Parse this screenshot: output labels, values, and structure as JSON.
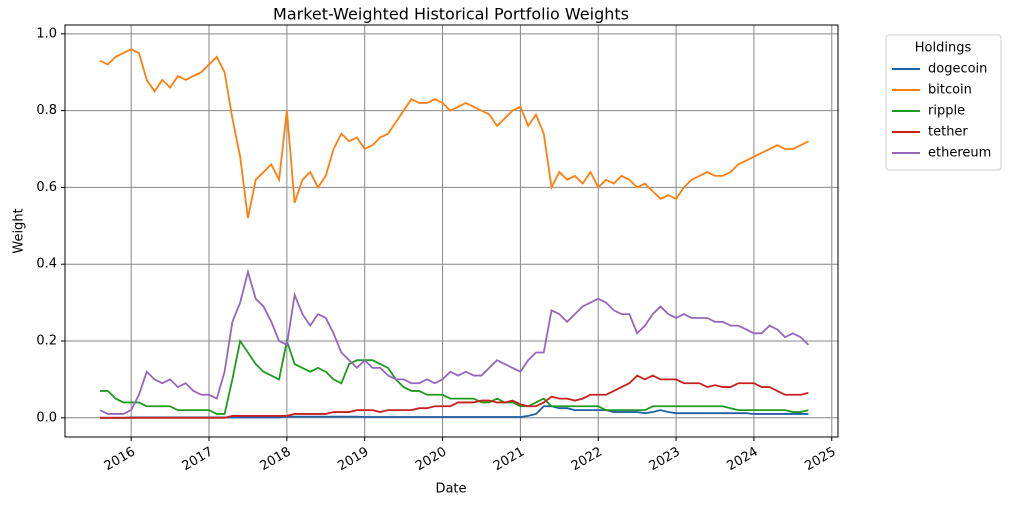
{
  "chart_data": {
    "type": "line",
    "title": "Market-Weighted Historical Portfolio Weights",
    "xlabel": "Date",
    "ylabel": "Weight",
    "legend_title": "Holdings",
    "legend_position": "outside-upper-right",
    "grid": true,
    "xlim": [
      2015.15,
      2025.08
    ],
    "xticks": [
      2016,
      2017,
      2018,
      2019,
      2020,
      2021,
      2022,
      2023,
      2024,
      2025
    ],
    "ylim": [
      -0.05,
      1.023
    ],
    "yticks": [
      {
        "value": 0,
        "label": "0.0"
      },
      0.2,
      0.4,
      0.6,
      0.8,
      {
        "value": 1,
        "label": "1.0"
      }
    ],
    "x": [
      2015.6,
      2015.7,
      2015.8,
      2015.9,
      2016.0,
      2016.1,
      2016.2,
      2016.3,
      2016.4,
      2016.5,
      2016.6,
      2016.7,
      2016.8,
      2016.9,
      2017.0,
      2017.1,
      2017.2,
      2017.3,
      2017.4,
      2017.5,
      2017.6,
      2017.7,
      2017.8,
      2017.9,
      2018.0,
      2018.1,
      2018.2,
      2018.3,
      2018.4,
      2018.5,
      2018.6,
      2018.7,
      2018.8,
      2018.9,
      2019.0,
      2019.1,
      2019.2,
      2019.3,
      2019.4,
      2019.5,
      2019.6,
      2019.7,
      2019.8,
      2019.9,
      2020.0,
      2020.1,
      2020.2,
      2020.3,
      2020.4,
      2020.5,
      2020.6,
      2020.7,
      2020.8,
      2020.9,
      2021.0,
      2021.1,
      2021.2,
      2021.3,
      2021.4,
      2021.5,
      2021.6,
      2021.7,
      2021.8,
      2021.9,
      2022.0,
      2022.1,
      2022.2,
      2022.3,
      2022.4,
      2022.5,
      2022.6,
      2022.7,
      2022.8,
      2022.9,
      2023.0,
      2023.1,
      2023.2,
      2023.3,
      2023.4,
      2023.5,
      2023.6,
      2023.7,
      2023.8,
      2023.9,
      2024.0,
      2024.1,
      2024.2,
      2024.3,
      2024.4,
      2024.5,
      2024.6,
      2024.7
    ],
    "series": [
      {
        "name": "dogecoin",
        "color": "#1f5fa6",
        "values": [
          0,
          0,
          0,
          0,
          0.001,
          0.001,
          0.001,
          0.001,
          0.001,
          0.001,
          0.001,
          0.001,
          0.001,
          0.001,
          0.001,
          0.001,
          0.001,
          0.001,
          0.001,
          0.001,
          0.001,
          0.001,
          0.001,
          0.001,
          0.003,
          0.003,
          0.003,
          0.003,
          0.003,
          0.003,
          0.003,
          0.003,
          0.003,
          0.003,
          0.002,
          0.002,
          0.002,
          0.002,
          0.002,
          0.002,
          0.002,
          0.002,
          0.002,
          0.002,
          0.002,
          0.002,
          0.002,
          0.002,
          0.002,
          0.002,
          0.002,
          0.002,
          0.002,
          0.002,
          0.002,
          0.005,
          0.01,
          0.03,
          0.03,
          0.025,
          0.025,
          0.02,
          0.02,
          0.02,
          0.02,
          0.02,
          0.015,
          0.015,
          0.015,
          0.015,
          0.012,
          0.015,
          0.02,
          0.015,
          0.012,
          0.012,
          0.012,
          0.012,
          0.012,
          0.012,
          0.012,
          0.012,
          0.012,
          0.012,
          0.01,
          0.01,
          0.01,
          0.01,
          0.01,
          0.01,
          0.01,
          0.01
        ]
      },
      {
        "name": "bitcoin",
        "color": "#ff7f0e",
        "values": [
          0.93,
          0.92,
          0.94,
          0.95,
          0.96,
          0.95,
          0.88,
          0.85,
          0.88,
          0.86,
          0.89,
          0.88,
          0.89,
          0.9,
          0.92,
          0.94,
          0.9,
          0.78,
          0.68,
          0.52,
          0.62,
          0.64,
          0.66,
          0.62,
          0.8,
          0.56,
          0.62,
          0.64,
          0.6,
          0.63,
          0.7,
          0.74,
          0.72,
          0.73,
          0.7,
          0.71,
          0.73,
          0.74,
          0.77,
          0.8,
          0.83,
          0.82,
          0.82,
          0.83,
          0.82,
          0.8,
          0.81,
          0.82,
          0.81,
          0.8,
          0.79,
          0.76,
          0.78,
          0.8,
          0.81,
          0.76,
          0.79,
          0.74,
          0.6,
          0.64,
          0.62,
          0.63,
          0.61,
          0.64,
          0.6,
          0.62,
          0.61,
          0.63,
          0.62,
          0.6,
          0.61,
          0.59,
          0.57,
          0.58,
          0.57,
          0.6,
          0.62,
          0.63,
          0.64,
          0.63,
          0.63,
          0.64,
          0.66,
          0.67,
          0.68,
          0.69,
          0.7,
          0.71,
          0.7,
          0.7,
          0.71,
          0.72
        ]
      },
      {
        "name": "ripple",
        "color": "#1f9a1f",
        "values": [
          0.07,
          0.07,
          0.05,
          0.04,
          0.04,
          0.04,
          0.03,
          0.03,
          0.03,
          0.03,
          0.02,
          0.02,
          0.02,
          0.02,
          0.02,
          0.01,
          0.01,
          0.1,
          0.2,
          0.17,
          0.14,
          0.12,
          0.11,
          0.1,
          0.2,
          0.14,
          0.13,
          0.12,
          0.13,
          0.12,
          0.1,
          0.09,
          0.14,
          0.15,
          0.15,
          0.15,
          0.14,
          0.13,
          0.1,
          0.08,
          0.07,
          0.07,
          0.06,
          0.06,
          0.06,
          0.05,
          0.05,
          0.05,
          0.05,
          0.04,
          0.04,
          0.05,
          0.04,
          0.04,
          0.03,
          0.03,
          0.04,
          0.05,
          0.03,
          0.03,
          0.03,
          0.03,
          0.03,
          0.03,
          0.03,
          0.02,
          0.02,
          0.02,
          0.02,
          0.02,
          0.02,
          0.03,
          0.03,
          0.03,
          0.03,
          0.03,
          0.03,
          0.03,
          0.03,
          0.03,
          0.03,
          0.025,
          0.02,
          0.02,
          0.02,
          0.02,
          0.02,
          0.02,
          0.02,
          0.015,
          0.015,
          0.02
        ]
      },
      {
        "name": "tether",
        "color": "#c81e1e",
        "values": [
          0,
          0,
          0,
          0,
          0,
          0,
          0,
          0,
          0,
          0,
          0,
          0,
          0,
          0,
          0,
          0,
          0,
          0.005,
          0.005,
          0.005,
          0.005,
          0.005,
          0.005,
          0.005,
          0.005,
          0.01,
          0.01,
          0.01,
          0.01,
          0.01,
          0.015,
          0.015,
          0.015,
          0.02,
          0.02,
          0.02,
          0.015,
          0.02,
          0.02,
          0.02,
          0.02,
          0.025,
          0.025,
          0.03,
          0.03,
          0.03,
          0.04,
          0.04,
          0.04,
          0.045,
          0.045,
          0.04,
          0.04,
          0.045,
          0.035,
          0.03,
          0.03,
          0.04,
          0.055,
          0.05,
          0.05,
          0.045,
          0.05,
          0.06,
          0.06,
          0.06,
          0.07,
          0.08,
          0.09,
          0.11,
          0.1,
          0.11,
          0.1,
          0.1,
          0.1,
          0.09,
          0.09,
          0.09,
          0.08,
          0.085,
          0.08,
          0.08,
          0.09,
          0.09,
          0.09,
          0.08,
          0.08,
          0.07,
          0.06,
          0.06,
          0.06,
          0.065
        ]
      },
      {
        "name": "ethereum",
        "color": "#9467bd",
        "values": [
          0.02,
          0.01,
          0.01,
          0.01,
          0.02,
          0.06,
          0.12,
          0.1,
          0.09,
          0.1,
          0.08,
          0.09,
          0.07,
          0.06,
          0.06,
          0.05,
          0.12,
          0.25,
          0.3,
          0.38,
          0.31,
          0.29,
          0.25,
          0.2,
          0.19,
          0.32,
          0.27,
          0.24,
          0.27,
          0.26,
          0.22,
          0.17,
          0.15,
          0.13,
          0.15,
          0.13,
          0.13,
          0.11,
          0.1,
          0.1,
          0.09,
          0.09,
          0.1,
          0.09,
          0.1,
          0.12,
          0.11,
          0.12,
          0.11,
          0.11,
          0.13,
          0.15,
          0.14,
          0.13,
          0.12,
          0.15,
          0.17,
          0.17,
          0.28,
          0.27,
          0.25,
          0.27,
          0.29,
          0.3,
          0.31,
          0.3,
          0.28,
          0.27,
          0.27,
          0.22,
          0.24,
          0.27,
          0.29,
          0.27,
          0.26,
          0.27,
          0.26,
          0.26,
          0.26,
          0.25,
          0.25,
          0.24,
          0.24,
          0.23,
          0.22,
          0.22,
          0.24,
          0.23,
          0.21,
          0.22,
          0.21,
          0.19
        ]
      }
    ]
  }
}
